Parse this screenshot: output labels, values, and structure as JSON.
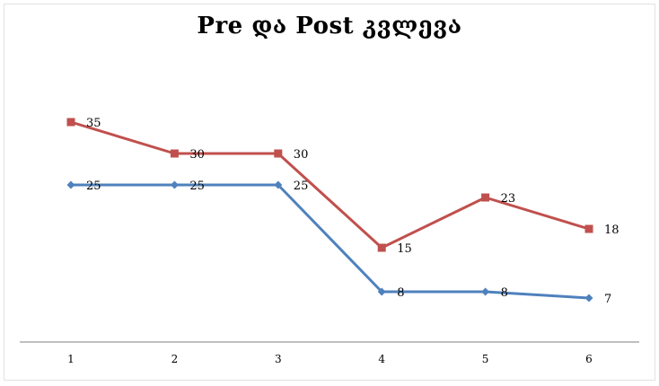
{
  "chart_data": {
    "type": "line",
    "title": "Pre და Post კვლევა",
    "xlabel": "",
    "ylabel": "",
    "categories": [
      "1",
      "2",
      "3",
      "4",
      "5",
      "6"
    ],
    "ylim": [
      0,
      40
    ],
    "grid": false,
    "legend": "none",
    "series": [
      {
        "color": "#c0504d",
        "marker": "square",
        "values": [
          35,
          30,
          30,
          15,
          23,
          18
        ]
      },
      {
        "color": "#4f81bd",
        "marker": "diamond",
        "values": [
          25,
          25,
          25,
          8,
          8,
          7
        ]
      }
    ]
  }
}
